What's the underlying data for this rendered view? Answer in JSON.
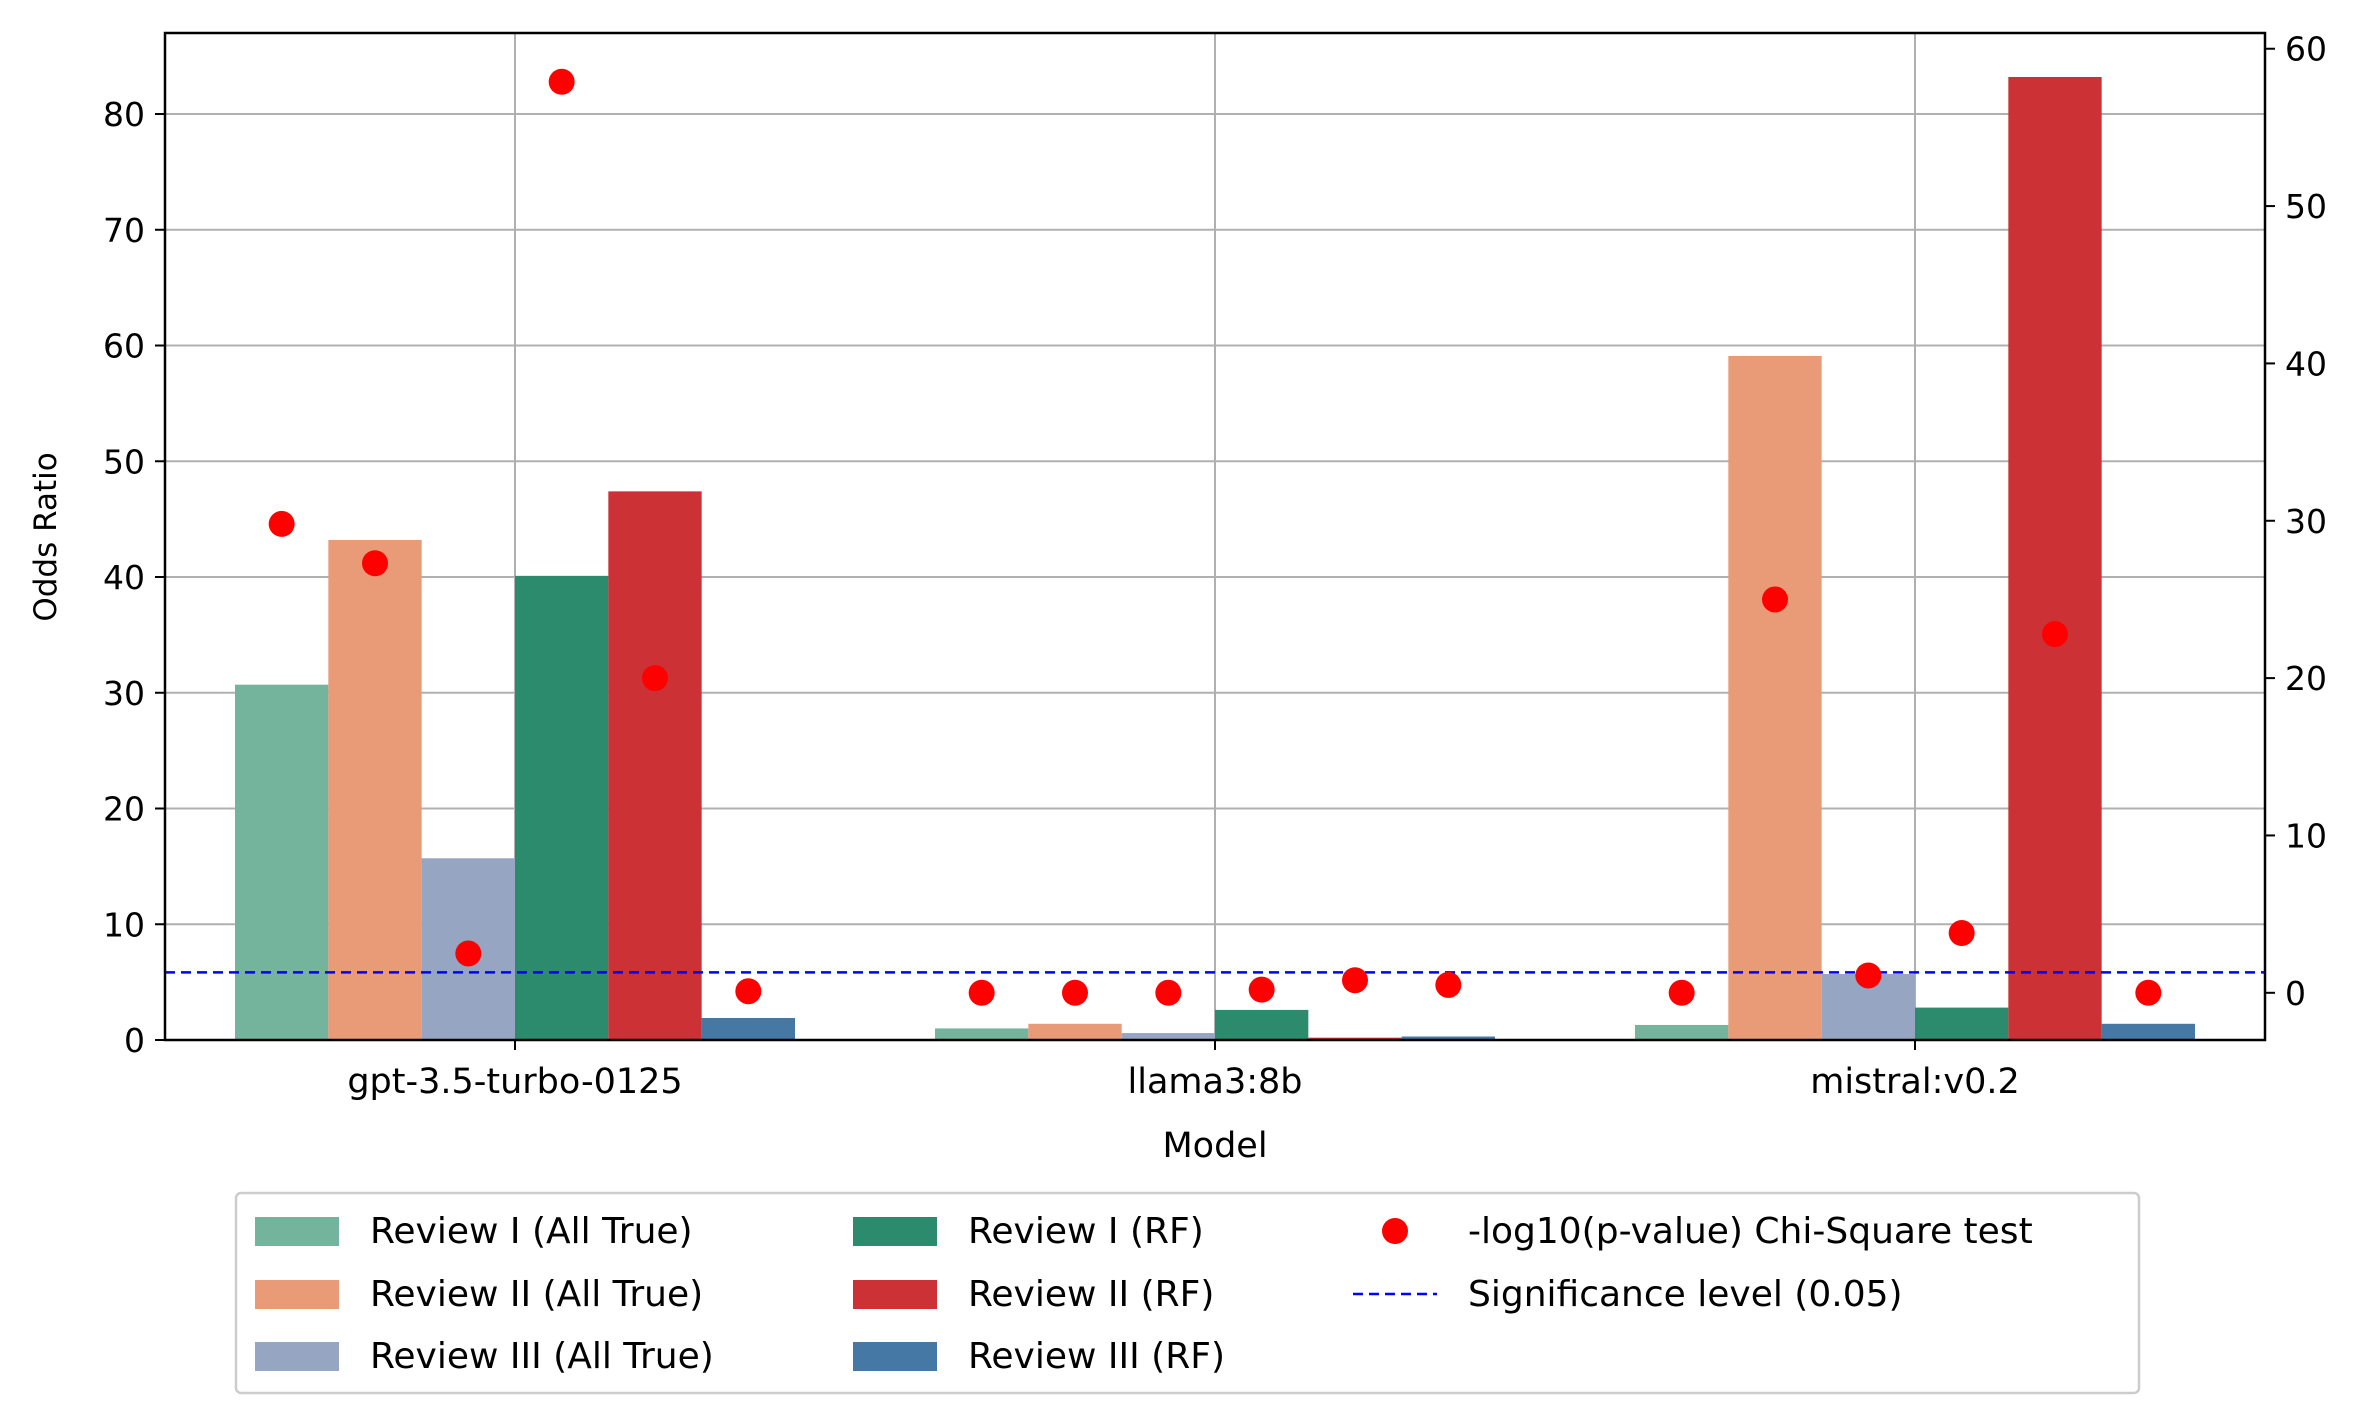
{
  "chart_data": {
    "type": "bar",
    "xlabel": "Model",
    "ylabel": "Odds Ratio",
    "y2label": "",
    "categories": [
      "gpt-3.5-turbo-0125",
      "llama3:8b",
      "mistral:v0.2"
    ],
    "ylim": [
      0,
      87
    ],
    "y2lim": [
      -3,
      61
    ],
    "yticks": [
      0,
      10,
      20,
      30,
      40,
      50,
      60,
      70,
      80
    ],
    "y2ticks": [
      0,
      10,
      20,
      30,
      40,
      50,
      60
    ],
    "grid": true,
    "legend_position": "bottom-center",
    "series": [
      {
        "name": "Review I (All True)",
        "color": "#74b49d",
        "values": [
          30.7,
          1.0,
          1.3
        ]
      },
      {
        "name": "Review II (All True)",
        "color": "#e99a76",
        "values": [
          43.2,
          1.4,
          59.1
        ]
      },
      {
        "name": "Review III (All True)",
        "color": "#96a5c2",
        "values": [
          15.7,
          0.6,
          5.7
        ]
      },
      {
        "name": "Review I (RF)",
        "color": "#2b8b6c",
        "values": [
          40.1,
          2.6,
          2.8
        ]
      },
      {
        "name": "Review II (RF)",
        "color": "#cb3135",
        "values": [
          47.4,
          0.2,
          83.2
        ]
      },
      {
        "name": "Review III (RF)",
        "color": "#4578a4",
        "values": [
          1.9,
          0.3,
          1.4
        ]
      }
    ],
    "scatter": {
      "name": "-log10(p-value) Chi-Square test",
      "color": "#ff0000",
      "axis": "right",
      "values": [
        [
          29.8,
          27.3,
          2.5,
          57.9,
          20.0,
          0.1
        ],
        [
          0.0,
          0.0,
          0.0,
          0.2,
          0.8,
          0.5
        ],
        [
          0.0,
          25.0,
          1.1,
          3.8,
          22.8,
          0.0
        ]
      ]
    },
    "reference_line": {
      "name": "Significance level (0.05)",
      "color": "#0000ff",
      "style": "dashed",
      "axis": "right",
      "value": 1.3
    }
  }
}
